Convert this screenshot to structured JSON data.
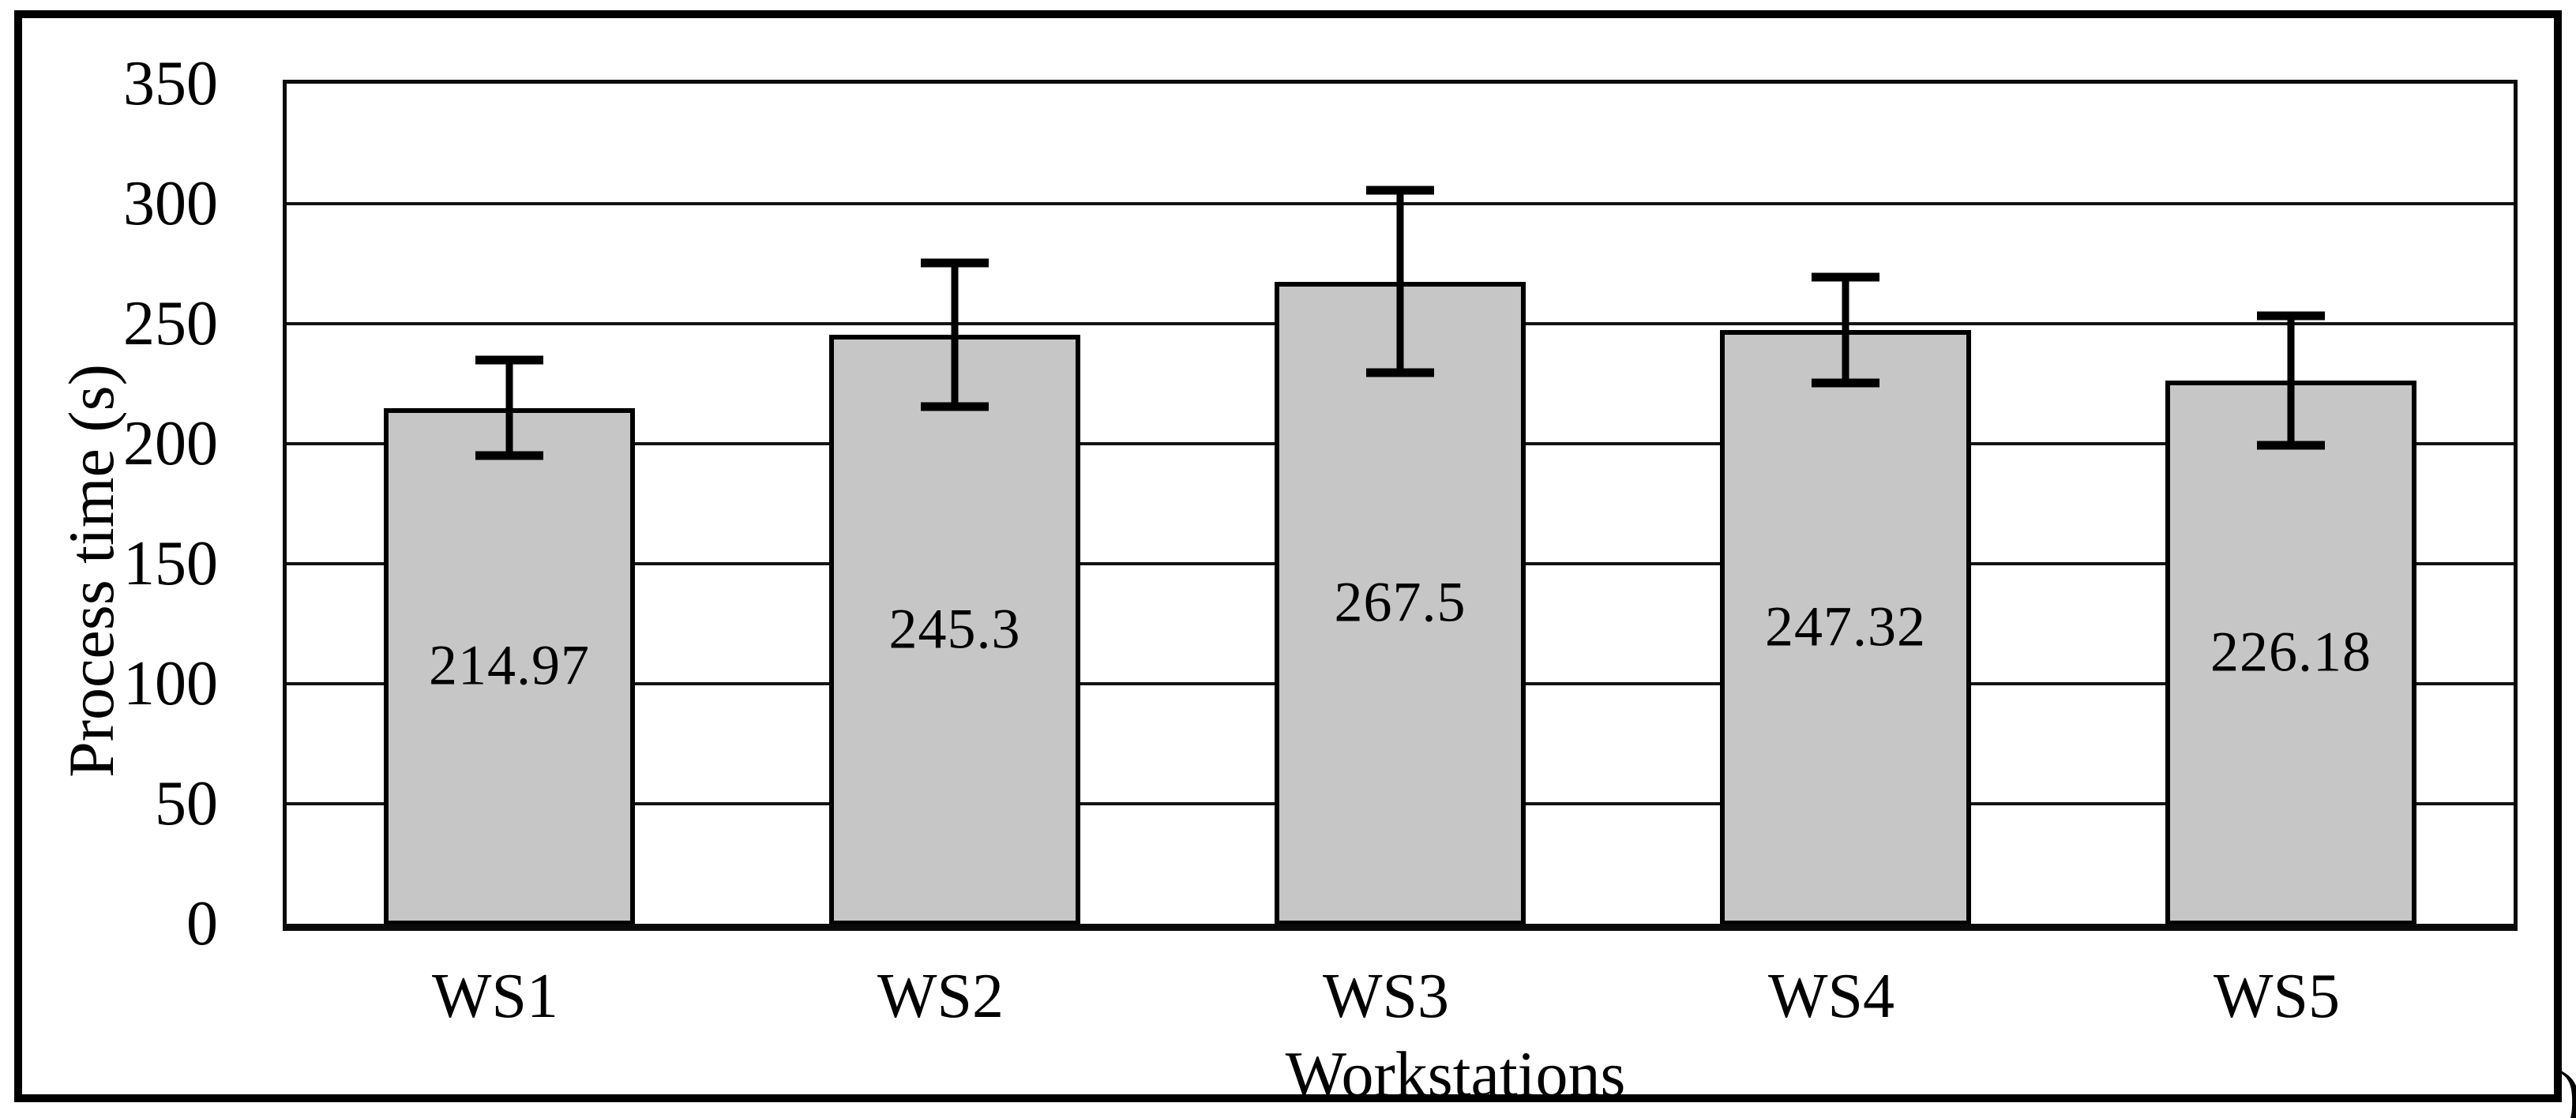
{
  "figure": {
    "background": "#ffffff",
    "frame_border_color": "#000000",
    "corner_artifact": ")"
  },
  "chart_data": {
    "type": "bar",
    "title": "",
    "categories": [
      "WS1",
      "WS2",
      "WS3",
      "WS4",
      "WS5"
    ],
    "values": [
      214.97,
      245.3,
      267.5,
      247.32,
      226.18
    ],
    "data_labels": [
      "214.97",
      "245.3",
      "267.5",
      "247.32",
      "226.18"
    ],
    "error_bars_plus_minus": [
      20,
      30,
      38,
      22,
      27
    ],
    "xlabel": "Workstations",
    "ylabel": "Process time (s)",
    "ylim": [
      0,
      350
    ],
    "y_tick_interval": 50,
    "y_ticks": [
      0,
      50,
      100,
      150,
      200,
      250,
      300,
      350
    ],
    "grid": "horizontal",
    "legend": "none",
    "bar_fill": "#c6c6c6",
    "bar_border": "#000000",
    "grid_color": "#141414"
  }
}
